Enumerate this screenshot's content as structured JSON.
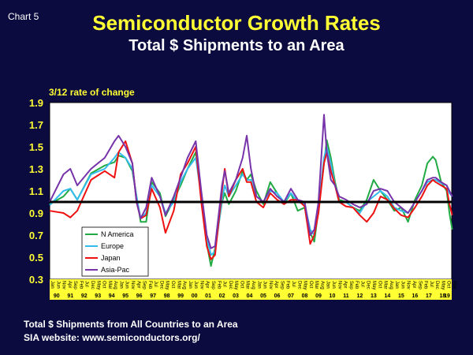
{
  "chart_number": "Chart 5",
  "chart_data": {
    "type": "line",
    "title": "Semiconductor Growth Rates",
    "subtitle": "Total $ Shipments to an Area",
    "ylabel": "3/12 rate of change",
    "ylim": [
      0.3,
      1.9
    ],
    "yticks": [
      0.3,
      0.5,
      0.7,
      0.9,
      1.1,
      1.3,
      1.5,
      1.7,
      1.9
    ],
    "yticklabels": [
      "0.3",
      "0.5",
      "0.7",
      "0.9",
      "1.1",
      "1.3",
      "1.5",
      "1.7",
      "1.9"
    ],
    "reference_line": 1.0,
    "grid": false,
    "legend_position": "bottom-left",
    "x_start": "1990-01",
    "x_end": "2019-03",
    "month_tick_labels": [
      "Jan",
      "Jun",
      "Nov",
      "Apr",
      "Sep",
      "Feb",
      "Jul",
      "Dec",
      "May",
      "Oct",
      "Mar",
      "Aug"
    ],
    "year_labels": [
      "90",
      "91",
      "92",
      "93",
      "94",
      "95",
      "96",
      "97",
      "98",
      "99",
      "00",
      "01",
      "02",
      "03",
      "04",
      "05",
      "06",
      "07",
      "08",
      "09",
      "10",
      "11",
      "12",
      "13",
      "14",
      "15",
      "16",
      "17",
      "18",
      "19"
    ],
    "x": [
      1990.0,
      1991.0,
      1991.5,
      1992.0,
      1993.0,
      1994.0,
      1994.7,
      1995.0,
      1995.5,
      1996.0,
      1996.3,
      1996.6,
      1997.0,
      1997.4,
      1998.0,
      1998.4,
      1999.0,
      1999.5,
      2000.0,
      2000.6,
      2001.0,
      2001.4,
      2001.7,
      2002.0,
      2002.5,
      2002.7,
      2003.0,
      2003.5,
      2004.0,
      2004.3,
      2004.6,
      2005.0,
      2005.5,
      2006.0,
      2006.5,
      2007.0,
      2007.5,
      2008.0,
      2008.5,
      2008.9,
      2009.2,
      2009.5,
      2009.9,
      2010.1,
      2010.4,
      2010.7,
      2011.0,
      2011.5,
      2012.0,
      2012.5,
      2013.0,
      2013.5,
      2014.0,
      2014.5,
      2015.0,
      2015.5,
      2016.0,
      2016.5,
      2017.0,
      2017.4,
      2017.8,
      2018.0,
      2018.4,
      2018.8,
      2019.0,
      2019.2
    ],
    "series": [
      {
        "name": "N America",
        "color": "#22aa44",
        "values": [
          0.98,
          1.05,
          1.12,
          1.02,
          1.26,
          1.33,
          1.36,
          1.42,
          1.4,
          1.28,
          1.05,
          0.82,
          0.82,
          1.18,
          1.08,
          0.87,
          1.02,
          1.15,
          1.3,
          1.45,
          1.05,
          0.62,
          0.42,
          0.58,
          1.0,
          1.08,
          0.98,
          1.1,
          1.28,
          1.2,
          1.25,
          1.1,
          0.98,
          1.18,
          1.08,
          0.98,
          1.08,
          0.92,
          0.95,
          0.72,
          0.64,
          0.93,
          1.35,
          1.56,
          1.4,
          1.18,
          1.02,
          1.0,
          0.95,
          0.92,
          1.02,
          1.2,
          1.1,
          1.02,
          0.92,
          0.95,
          0.82,
          1.02,
          1.15,
          1.35,
          1.41,
          1.38,
          1.18,
          1.1,
          0.9,
          0.75
        ]
      },
      {
        "name": "Europe",
        "color": "#33bbee",
        "values": [
          0.97,
          1.1,
          1.12,
          1.02,
          1.25,
          1.3,
          1.4,
          1.45,
          1.4,
          1.3,
          1.05,
          0.85,
          0.9,
          1.15,
          1.05,
          0.9,
          1.0,
          1.18,
          1.3,
          1.4,
          1.05,
          0.68,
          0.52,
          0.55,
          1.02,
          1.15,
          1.05,
          1.15,
          1.25,
          1.2,
          1.2,
          1.05,
          1.0,
          1.1,
          1.08,
          1.0,
          1.08,
          1.0,
          0.98,
          0.75,
          0.7,
          0.95,
          1.4,
          1.5,
          1.35,
          1.15,
          1.0,
          1.0,
          0.95,
          0.9,
          1.0,
          1.05,
          1.1,
          1.05,
          0.95,
          0.92,
          0.9,
          1.0,
          1.1,
          1.18,
          1.2,
          1.2,
          1.17,
          1.15,
          1.08,
          1.05
        ]
      },
      {
        "name": "Japan",
        "color": "#ee1111",
        "values": [
          0.92,
          0.9,
          0.86,
          0.92,
          1.2,
          1.28,
          1.22,
          1.45,
          1.55,
          1.35,
          1.0,
          0.85,
          0.88,
          1.12,
          0.95,
          0.72,
          0.92,
          1.25,
          1.35,
          1.5,
          1.0,
          0.6,
          0.48,
          0.52,
          1.1,
          1.3,
          1.05,
          1.2,
          1.3,
          1.18,
          1.18,
          1.0,
          0.95,
          1.08,
          1.02,
          0.98,
          1.02,
          1.02,
          0.96,
          0.62,
          0.7,
          0.9,
          1.35,
          1.45,
          1.28,
          1.15,
          1.0,
          0.96,
          0.95,
          0.88,
          0.82,
          0.9,
          1.05,
          1.02,
          0.94,
          0.88,
          0.86,
          0.95,
          1.05,
          1.15,
          1.2,
          1.18,
          1.15,
          1.12,
          0.98,
          0.88
        ]
      },
      {
        "name": "Asia-Pac",
        "color": "#7733aa",
        "values": [
          1.0,
          1.25,
          1.3,
          1.15,
          1.3,
          1.4,
          1.55,
          1.6,
          1.5,
          1.35,
          1.0,
          0.85,
          0.95,
          1.22,
          1.05,
          0.88,
          1.05,
          1.22,
          1.4,
          1.55,
          1.1,
          0.7,
          0.58,
          0.6,
          1.15,
          1.28,
          1.08,
          1.2,
          1.4,
          1.6,
          1.3,
          1.05,
          1.0,
          1.12,
          1.05,
          1.0,
          1.12,
          1.02,
          1.0,
          0.7,
          0.75,
          1.0,
          1.79,
          1.45,
          1.2,
          1.15,
          1.05,
          1.02,
          0.98,
          0.95,
          0.98,
          1.1,
          1.12,
          1.1,
          1.0,
          0.95,
          0.9,
          1.0,
          1.1,
          1.2,
          1.22,
          1.22,
          1.18,
          1.15,
          1.1,
          1.05
        ]
      }
    ]
  },
  "footnote_line1": "Total $ Shipments from All Countries to an Area",
  "footnote_line2": "SIA website:  www.semiconductors.org/"
}
